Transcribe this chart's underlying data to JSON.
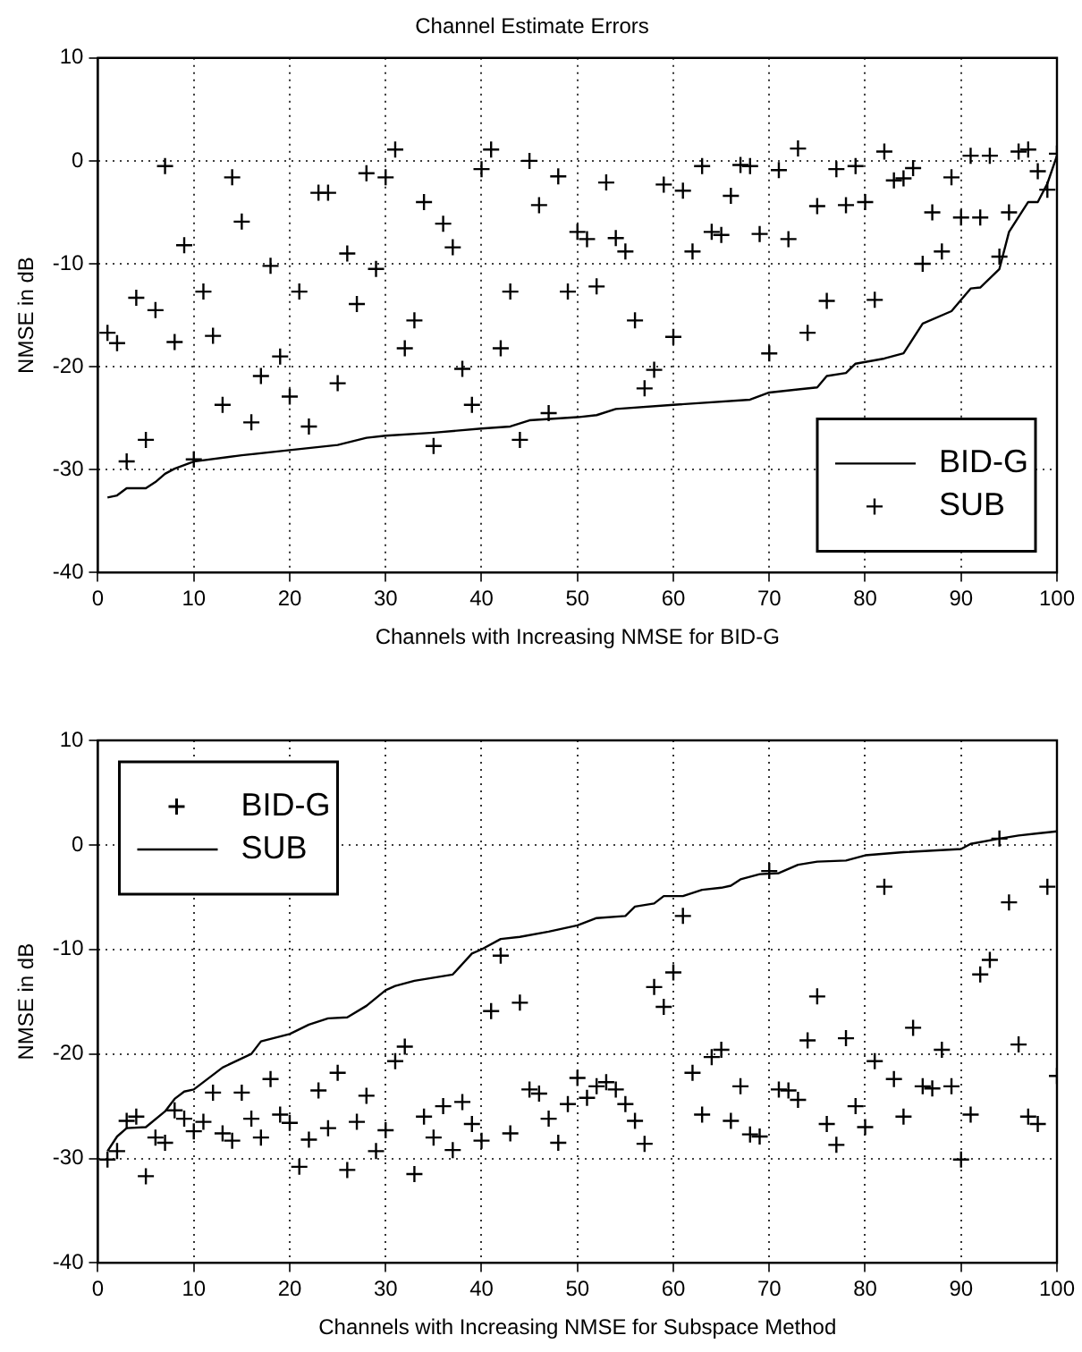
{
  "chart_data": [
    {
      "type": "scatter",
      "title": "Channel Estimate Errors",
      "xlabel": "Channels with Increasing NMSE for BID-G",
      "ylabel": "NMSE in dB",
      "xlim": [
        0,
        100
      ],
      "xticks": [
        0,
        10,
        20,
        30,
        40,
        50,
        60,
        70,
        80,
        90,
        100
      ],
      "ylim": [
        -40,
        10
      ],
      "yticks": [
        -40,
        -30,
        -20,
        -10,
        0,
        10
      ],
      "grid": true,
      "legend": "bottom right",
      "x": [
        1,
        2,
        3,
        4,
        5,
        6,
        7,
        8,
        9,
        10,
        11,
        12,
        13,
        14,
        15,
        16,
        17,
        18,
        19,
        20,
        21,
        22,
        23,
        24,
        25,
        26,
        27,
        28,
        29,
        30,
        31,
        32,
        33,
        34,
        35,
        36,
        37,
        38,
        39,
        40,
        41,
        42,
        43,
        44,
        45,
        46,
        47,
        48,
        49,
        50,
        51,
        52,
        53,
        54,
        55,
        56,
        57,
        58,
        59,
        60,
        61,
        62,
        63,
        64,
        65,
        66,
        67,
        68,
        69,
        70,
        71,
        72,
        73,
        74,
        75,
        76,
        77,
        78,
        79,
        80,
        81,
        82,
        83,
        84,
        85,
        86,
        87,
        88,
        89,
        90,
        91,
        92,
        93,
        94,
        95,
        96,
        97,
        98,
        99,
        100
      ],
      "series": [
        {
          "name": "BID-G",
          "type": "line",
          "marker": "none",
          "color": "#000000",
          "x": [
            1,
            2,
            3,
            5,
            6,
            7,
            8,
            10,
            15,
            20,
            25,
            28,
            30,
            35,
            40,
            43,
            45,
            50,
            52,
            54,
            60,
            68,
            70,
            73,
            75,
            76,
            78,
            79,
            82,
            84,
            86,
            89,
            91,
            92,
            94,
            95,
            97,
            98,
            99,
            100
          ],
          "values": [
            -32.7,
            -32.5,
            -31.8,
            -31.8,
            -31.2,
            -30.4,
            -29.9,
            -29.2,
            -28.6,
            -28.1,
            -27.6,
            -26.9,
            -26.7,
            -26.4,
            -26.0,
            -25.8,
            -25.2,
            -24.9,
            -24.7,
            -24.1,
            -23.7,
            -23.2,
            -22.5,
            -22.2,
            -22.0,
            -20.9,
            -20.6,
            -19.7,
            -19.2,
            -18.7,
            -15.8,
            -14.6,
            -12.4,
            -12.3,
            -10.5,
            -6.9,
            -4.0,
            -4.0,
            -2.2,
            0.5
          ]
        },
        {
          "name": "SUB",
          "type": "scatter",
          "marker": "cross",
          "color": "#000000",
          "values": [
            -16.7,
            -17.7,
            -29.2,
            -13.3,
            -27.1,
            -14.5,
            -0.5,
            -17.6,
            -8.2,
            -29.0,
            -12.7,
            -17.0,
            -23.7,
            -1.6,
            -5.9,
            -25.4,
            -20.9,
            -10.2,
            -19.0,
            -22.9,
            -12.7,
            -25.8,
            -3.1,
            -3.1,
            -21.6,
            -9.0,
            -13.9,
            -1.2,
            -10.5,
            -1.6,
            1.1,
            -18.2,
            -15.5,
            -4.0,
            -27.7,
            -6.1,
            -8.4,
            -20.2,
            -23.7,
            -0.8,
            1.1,
            -18.2,
            -12.7,
            -27.1,
            0.0,
            -4.3,
            -24.5,
            -1.5,
            -12.7,
            -6.9,
            -7.6,
            -12.2,
            -2.1,
            -7.5,
            -8.8,
            -15.5,
            -22.1,
            -20.3,
            -2.3,
            -17.1,
            -2.9,
            -8.8,
            -0.5,
            -6.9,
            -7.2,
            -3.4,
            -0.4,
            -0.5,
            -7.1,
            -18.7,
            -0.9,
            -7.6,
            1.2,
            -16.7,
            -4.4,
            -13.6,
            -0.8,
            -4.3,
            -0.5,
            -4.0,
            -13.5,
            0.9,
            -1.9,
            -1.7,
            -0.7,
            -10.0,
            -5.0,
            -8.8,
            -1.6,
            -5.5,
            0.5,
            -5.5,
            0.5,
            -9.3,
            -5.0,
            0.9,
            1.1,
            -1.0,
            -2.8,
            0.7
          ]
        }
      ]
    },
    {
      "type": "scatter",
      "xlabel": "Channels with Increasing NMSE for Subspace Method",
      "ylabel": "NMSE in dB",
      "xlim": [
        0,
        100
      ],
      "xticks": [
        0,
        10,
        20,
        30,
        40,
        50,
        60,
        70,
        80,
        90,
        100
      ],
      "ylim": [
        -40,
        10
      ],
      "yticks": [
        -40,
        -30,
        -20,
        -10,
        0,
        10
      ],
      "grid": true,
      "legend": "top left",
      "x": [
        1,
        2,
        3,
        4,
        5,
        6,
        7,
        8,
        9,
        10,
        11,
        12,
        13,
        14,
        15,
        16,
        17,
        18,
        19,
        20,
        21,
        22,
        23,
        24,
        25,
        26,
        27,
        28,
        29,
        30,
        31,
        32,
        33,
        34,
        35,
        36,
        37,
        38,
        39,
        40,
        41,
        42,
        43,
        44,
        45,
        46,
        47,
        48,
        49,
        50,
        51,
        52,
        53,
        54,
        55,
        56,
        57,
        58,
        59,
        60,
        61,
        62,
        63,
        64,
        65,
        66,
        67,
        68,
        69,
        70,
        71,
        72,
        73,
        74,
        75,
        76,
        77,
        78,
        79,
        80,
        81,
        82,
        83,
        84,
        85,
        86,
        87,
        88,
        89,
        90,
        91,
        92,
        93,
        94,
        95,
        96,
        97,
        98,
        99,
        100
      ],
      "series": [
        {
          "name": "BID-G",
          "type": "scatter",
          "marker": "cross",
          "color": "#000000",
          "values": [
            -30.1,
            -29.3,
            -26.4,
            -26.0,
            -31.7,
            -28.0,
            -28.5,
            -25.4,
            -26.2,
            -27.4,
            -26.5,
            -23.7,
            -27.6,
            -28.3,
            -23.7,
            -26.2,
            -28.0,
            -22.4,
            -25.8,
            -26.6,
            -30.8,
            -28.2,
            -23.5,
            -27.1,
            -21.8,
            -31.1,
            -26.5,
            -24.0,
            -29.3,
            -27.3,
            -20.7,
            -19.3,
            -31.5,
            -26.0,
            -28.0,
            -25.0,
            -29.2,
            -24.6,
            -26.7,
            -28.3,
            -15.9,
            -10.6,
            -27.6,
            -15.1,
            -23.4,
            -23.8,
            -26.2,
            -28.5,
            -24.8,
            -22.3,
            -24.2,
            -23.1,
            -22.7,
            -23.4,
            -24.8,
            -26.4,
            -28.6,
            -13.6,
            -15.5,
            -12.2,
            -6.8,
            -21.8,
            -25.8,
            -20.3,
            -19.6,
            -26.4,
            -23.1,
            -27.7,
            -27.9,
            -2.5,
            -23.4,
            -23.5,
            -24.4,
            -18.7,
            -14.5,
            -26.7,
            -28.7,
            -18.5,
            -25.0,
            -27.0,
            -20.7,
            -4.0,
            -22.4,
            -26.0,
            -17.5,
            -23.1,
            -23.3,
            -19.6,
            -23.1,
            -30.1,
            -25.8,
            -12.4,
            -11.0,
            0.6,
            -5.5,
            -19.1,
            -26.0,
            -26.7,
            -4.0,
            -22.1
          ]
        },
        {
          "name": "SUB",
          "type": "line",
          "marker": "none",
          "color": "#000000",
          "x": [
            1,
            2,
            3,
            5,
            7,
            8,
            9,
            10,
            13,
            16,
            17,
            20,
            22,
            24,
            26,
            28,
            30,
            31,
            33,
            37,
            39,
            40,
            42,
            44,
            47,
            50,
            52,
            55,
            56,
            58,
            59,
            61,
            63,
            65,
            66,
            67,
            69,
            71,
            73,
            75,
            78,
            80,
            84,
            90,
            91,
            94,
            96,
            98,
            100
          ],
          "values": [
            -29.3,
            -27.9,
            -27.1,
            -27.0,
            -25.5,
            -24.3,
            -23.6,
            -23.4,
            -21.3,
            -20.0,
            -18.8,
            -18.1,
            -17.2,
            -16.6,
            -16.5,
            -15.4,
            -13.9,
            -13.5,
            -13.0,
            -12.4,
            -10.4,
            -10.0,
            -9.0,
            -8.8,
            -8.3,
            -7.7,
            -7.0,
            -6.8,
            -5.9,
            -5.6,
            -4.9,
            -4.9,
            -4.3,
            -4.1,
            -3.9,
            -3.3,
            -2.8,
            -2.7,
            -1.9,
            -1.6,
            -1.5,
            -1.0,
            -0.7,
            -0.4,
            0.1,
            0.6,
            0.9,
            1.1,
            1.3
          ]
        }
      ]
    }
  ]
}
